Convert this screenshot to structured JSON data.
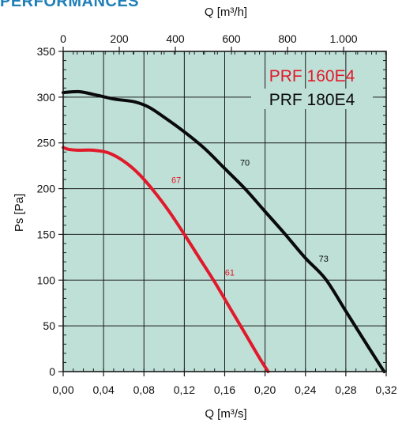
{
  "heading": "PERFORMANCES",
  "chart_data": {
    "type": "line",
    "x_top_label": "Q [m³/h]",
    "xlabel": "Q [m³/s]",
    "ylabel": "Ps [Pa]",
    "xlim": [
      0,
      0.32
    ],
    "ylim": [
      0,
      350
    ],
    "x_ticks": [
      0,
      0.04,
      0.08,
      0.12,
      0.16,
      0.2,
      0.24,
      0.28,
      0.32
    ],
    "x_tick_labels": [
      "0,00",
      "0,04",
      "0,08",
      "0,12",
      "0,16",
      "0,20",
      "0,24",
      "0,28",
      "0,32"
    ],
    "top_ticks_m3h": [
      0,
      200,
      400,
      600,
      800,
      1000
    ],
    "top_tick_labels": [
      "0",
      "200",
      "400",
      "600",
      "800",
      "1.000"
    ],
    "y_ticks": [
      0,
      50,
      100,
      150,
      200,
      250,
      300,
      350
    ],
    "y_tick_labels": [
      "0",
      "50",
      "100",
      "150",
      "200",
      "250",
      "300",
      "350"
    ],
    "grid": true,
    "background_color": "#bfe0d6",
    "legend_position": "top-right",
    "series": [
      {
        "name": "PRF 160E4",
        "color": "#e0192b",
        "points": [
          [
            0,
            245
          ],
          [
            0.005,
            243
          ],
          [
            0.015,
            242
          ],
          [
            0.03,
            242
          ],
          [
            0.045,
            239
          ],
          [
            0.06,
            230
          ],
          [
            0.075,
            216
          ],
          [
            0.09,
            197
          ],
          [
            0.105,
            175
          ],
          [
            0.12,
            150
          ],
          [
            0.135,
            124
          ],
          [
            0.15,
            98
          ],
          [
            0.165,
            70
          ],
          [
            0.18,
            42
          ],
          [
            0.195,
            14
          ],
          [
            0.203,
            0
          ]
        ],
        "annotations": [
          {
            "text": "67",
            "x": 0.112,
            "y": 206
          },
          {
            "text": "61",
            "x": 0.165,
            "y": 105
          }
        ]
      },
      {
        "name": "PRF 180E4",
        "color": "#0a0a0a",
        "points": [
          [
            0,
            305
          ],
          [
            0.015,
            306
          ],
          [
            0.03,
            303
          ],
          [
            0.05,
            298
          ],
          [
            0.07,
            295
          ],
          [
            0.085,
            289
          ],
          [
            0.1,
            278
          ],
          [
            0.12,
            262
          ],
          [
            0.14,
            244
          ],
          [
            0.16,
            222
          ],
          [
            0.18,
            200
          ],
          [
            0.2,
            175
          ],
          [
            0.22,
            150
          ],
          [
            0.24,
            124
          ],
          [
            0.26,
            101
          ],
          [
            0.28,
            66
          ],
          [
            0.3,
            31
          ],
          [
            0.315,
            5
          ],
          [
            0.318,
            0
          ]
        ],
        "annotations": [
          {
            "text": "70",
            "x": 0.18,
            "y": 225
          },
          {
            "text": "73",
            "x": 0.258,
            "y": 120
          }
        ]
      }
    ]
  }
}
